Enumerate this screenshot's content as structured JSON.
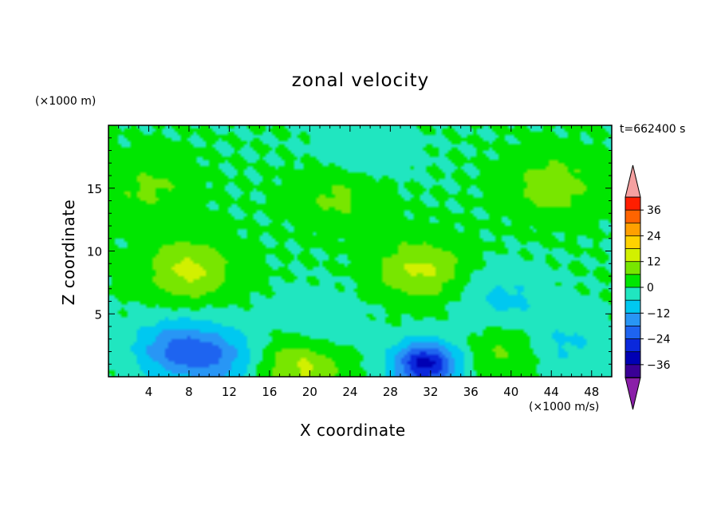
{
  "chart_data": {
    "type": "heatmap",
    "title": "zonal velocity",
    "xlabel": "X coordinate",
    "ylabel": "Z coordinate",
    "x_unit": "(×1000 m/s)",
    "y_unit": "(×1000 m)",
    "time_label": "t=662400 s",
    "xlim": [
      0,
      50
    ],
    "ylim": [
      0,
      20
    ],
    "x_ticks": [
      4,
      8,
      12,
      16,
      20,
      24,
      28,
      32,
      36,
      40,
      44,
      48
    ],
    "y_ticks": [
      5,
      10,
      15
    ],
    "colorbar": {
      "levels": [
        -42,
        -36,
        -30,
        -24,
        -18,
        -12,
        -6,
        0,
        6,
        12,
        18,
        24,
        30,
        36,
        42
      ],
      "tick_values": [
        36,
        24,
        12,
        0,
        -12,
        -24,
        -36
      ],
      "tick_labels": [
        "36",
        "24",
        "12",
        "0",
        "−12",
        "−24",
        "−36"
      ],
      "colors": [
        "#3a0096",
        "#0000b4",
        "#0a28dc",
        "#1e64f0",
        "#2896f5",
        "#00c8f0",
        "#20e6c0",
        "#00e600",
        "#78e600",
        "#d2f000",
        "#ffd200",
        "#ffa000",
        "#ff6400",
        "#ff1e00"
      ],
      "under_color": "#8a1fa8",
      "over_color": "#f5a0a0"
    },
    "features": [
      {
        "x": 25,
        "z": 17.5,
        "value": -6
      },
      {
        "x": 8,
        "z": 8.5,
        "value": 14
      },
      {
        "x": 31,
        "z": 8.5,
        "value": 13
      },
      {
        "x": 44,
        "z": 15.2,
        "value": 10
      },
      {
        "x": 23,
        "z": 14.5,
        "value": 8
      },
      {
        "x": 4,
        "z": 15,
        "value": 7
      },
      {
        "x": 31.5,
        "z": 1,
        "value": -32
      },
      {
        "x": 6.5,
        "z": 2.2,
        "value": -16
      },
      {
        "x": 11,
        "z": 1.5,
        "value": -14
      },
      {
        "x": 39,
        "z": 6,
        "value": -8
      },
      {
        "x": 45,
        "z": 2.5,
        "value": -8
      },
      {
        "x": 19,
        "z": 0.8,
        "value": 14
      },
      {
        "x": 40,
        "z": 2,
        "value": 8
      },
      {
        "x": 21,
        "z": 4,
        "value": -6
      }
    ]
  }
}
